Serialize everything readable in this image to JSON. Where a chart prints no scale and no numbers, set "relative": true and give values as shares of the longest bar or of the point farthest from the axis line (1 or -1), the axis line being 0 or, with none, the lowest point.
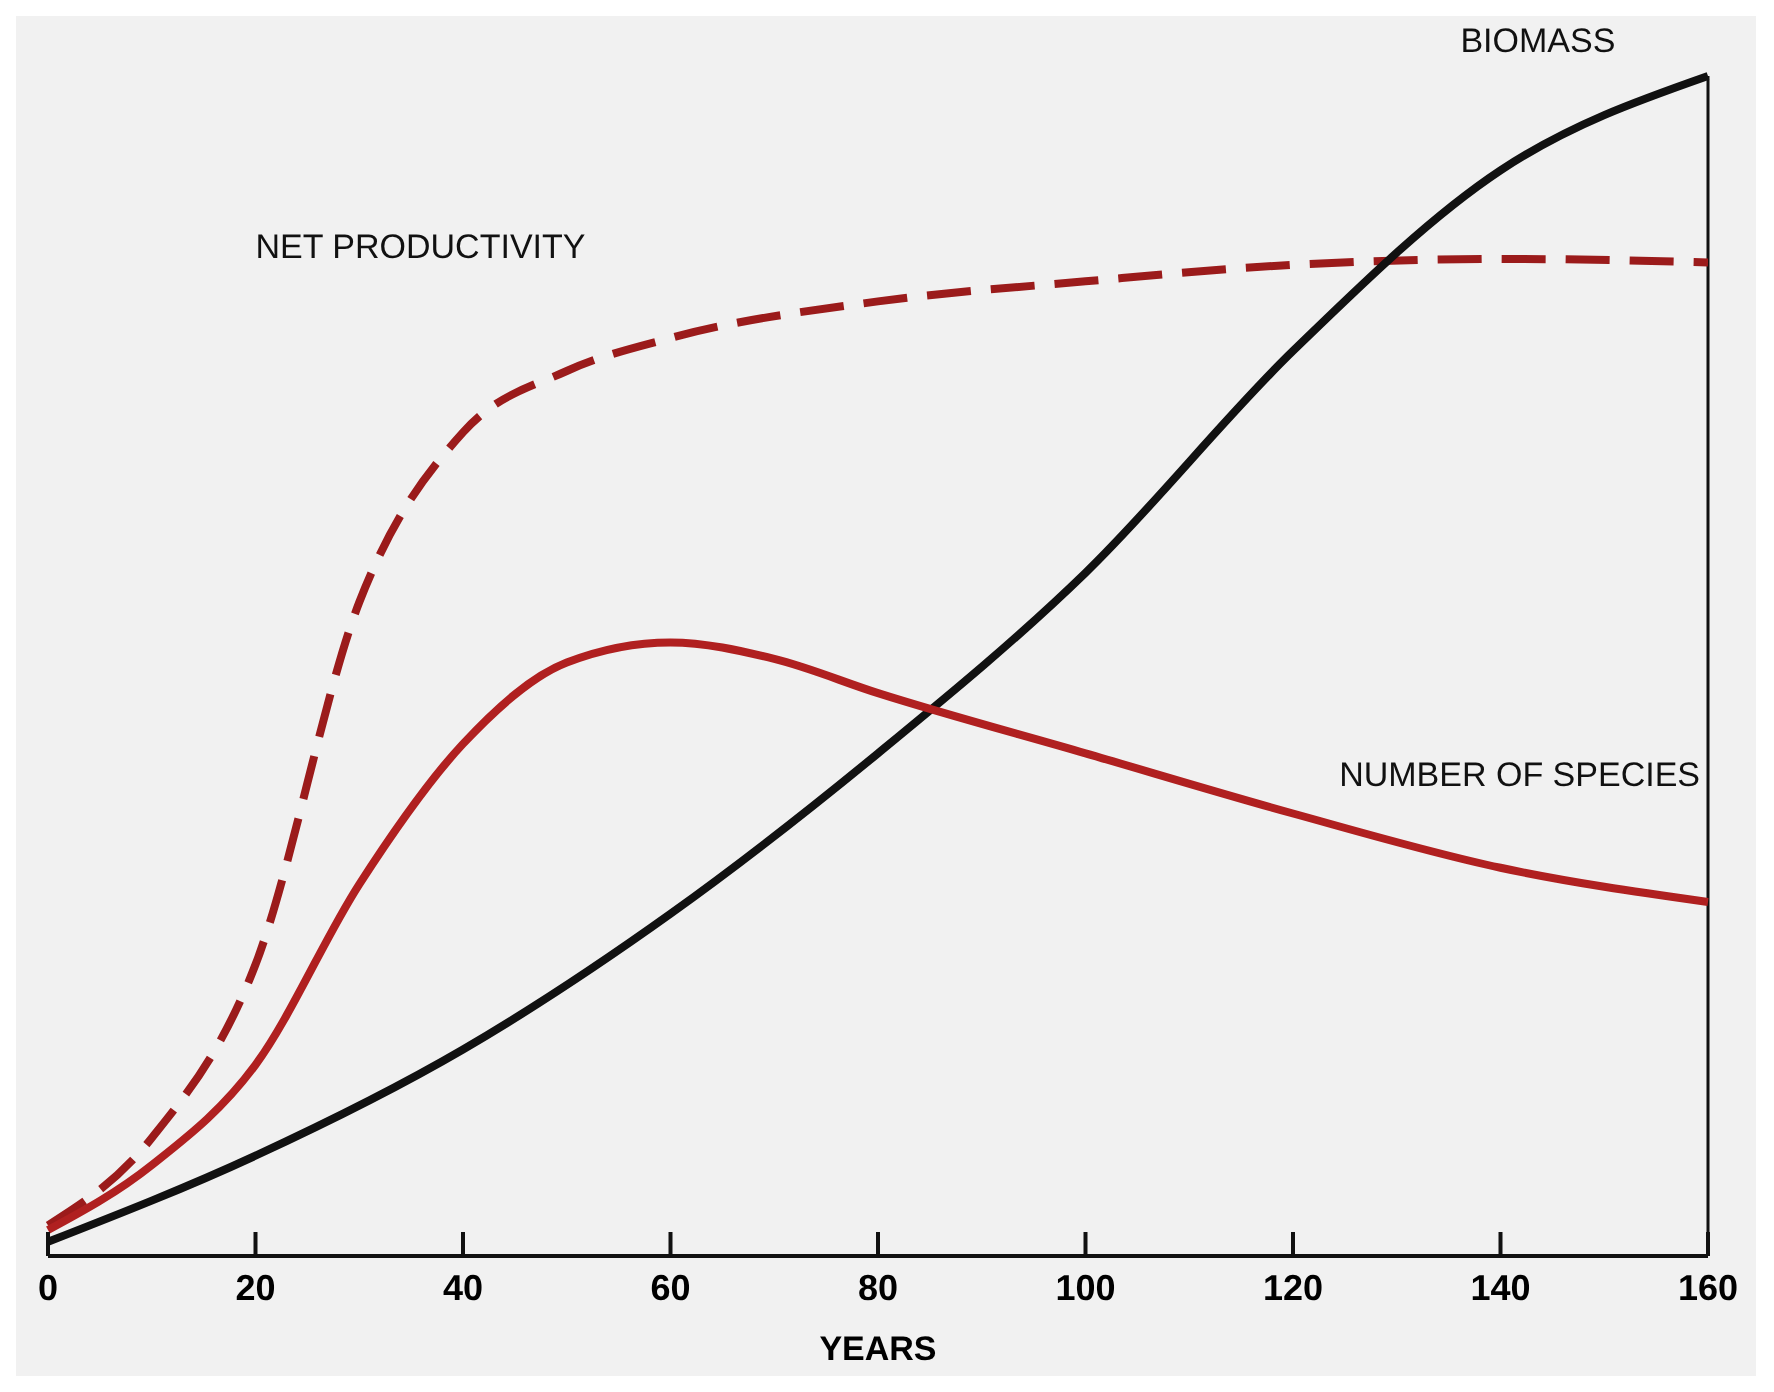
{
  "chart_data": {
    "type": "line",
    "relative": true,
    "xlabel": "YEARS",
    "xlim": [
      0,
      160
    ],
    "xticks": [
      0,
      20,
      40,
      60,
      80,
      100,
      120,
      140,
      160
    ],
    "grid": false,
    "tick_labels": "x",
    "series": [
      {
        "name": "NET PRODUCTIVITY",
        "color": "#9b1b1b",
        "line_style": "dashed",
        "x": [
          0,
          10,
          20,
          30,
          40,
          50,
          60,
          80,
          100,
          120,
          140,
          160
        ],
        "values": [
          0.026,
          0.1,
          0.247,
          0.554,
          0.698,
          0.75,
          0.778,
          0.809,
          0.826,
          0.84,
          0.845,
          0.842
        ]
      },
      {
        "name": "BIOMASS",
        "color": "#111111",
        "line_style": "solid",
        "x": [
          0,
          20,
          40,
          60,
          80,
          100,
          120,
          140,
          160
        ],
        "values": [
          0.012,
          0.085,
          0.175,
          0.29,
          0.426,
          0.579,
          0.767,
          0.92,
          1
        ]
      },
      {
        "name": "NUMBER OF SPECIES",
        "color": "#b02020",
        "line_style": "solid",
        "x": [
          0,
          10,
          20,
          30,
          40,
          50,
          60,
          70,
          80,
          100,
          120,
          140,
          160
        ],
        "values": [
          0.022,
          0.077,
          0.162,
          0.315,
          0.434,
          0.503,
          0.52,
          0.506,
          0.477,
          0.426,
          0.375,
          0.329,
          0.3
        ]
      }
    ]
  }
}
